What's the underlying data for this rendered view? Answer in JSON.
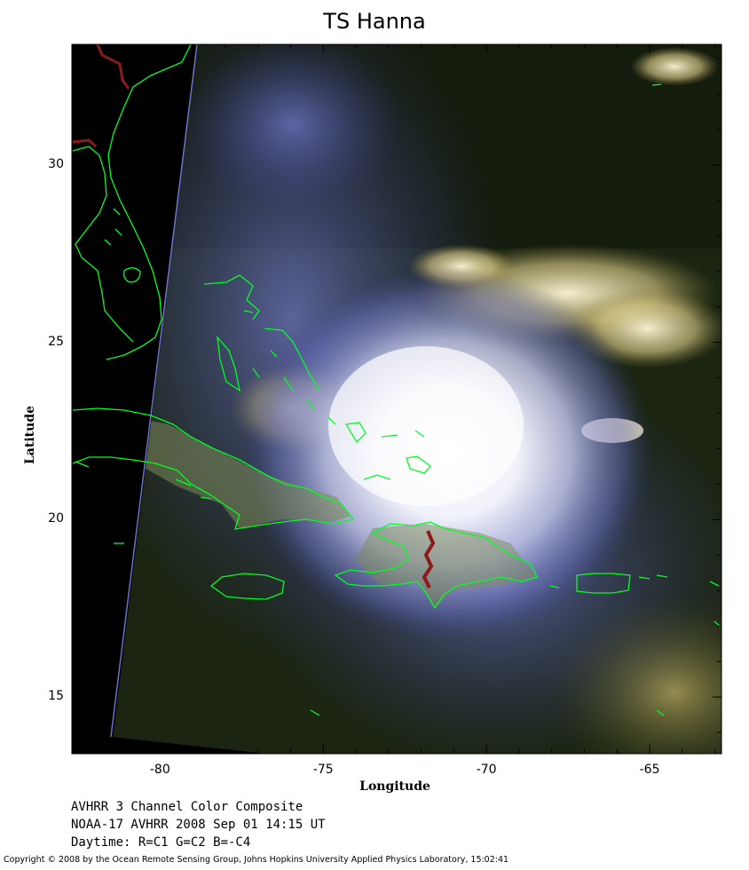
{
  "title": "TS Hanna",
  "axes": {
    "xlabel": "Longitude",
    "ylabel": "Latitude",
    "x_ticks": [
      "-80",
      "-75",
      "-70",
      "-65"
    ],
    "y_ticks": [
      "30",
      "25",
      "20",
      "15"
    ],
    "x_tick_values": [
      -80,
      -75,
      -70,
      -65
    ],
    "y_tick_values": [
      30,
      25,
      20,
      15
    ],
    "xlim": [
      -82.7,
      -62.8
    ],
    "ylim": [
      13.4,
      33.4
    ]
  },
  "info_lines": [
    "AVHRR 3 Channel Color Composite",
    "NOAA-17 AVHRR 2008 Sep 01 14:15 UT",
    "Daytime: R=C1 G=C2 B=-C4"
  ],
  "copyright": "Copyright © 2008 by the Ocean Remote Sensing Group, Johns Hopkins University Applied Physics Laboratory, 15:02:41",
  "colors": {
    "coastline": "#00ff22",
    "border": "#8b1a1a",
    "no_data": "#000000",
    "ocean": "#1a2410",
    "cloud": "#f4f4ff"
  },
  "storm_center": {
    "lon": -71.5,
    "lat": 22.2
  }
}
